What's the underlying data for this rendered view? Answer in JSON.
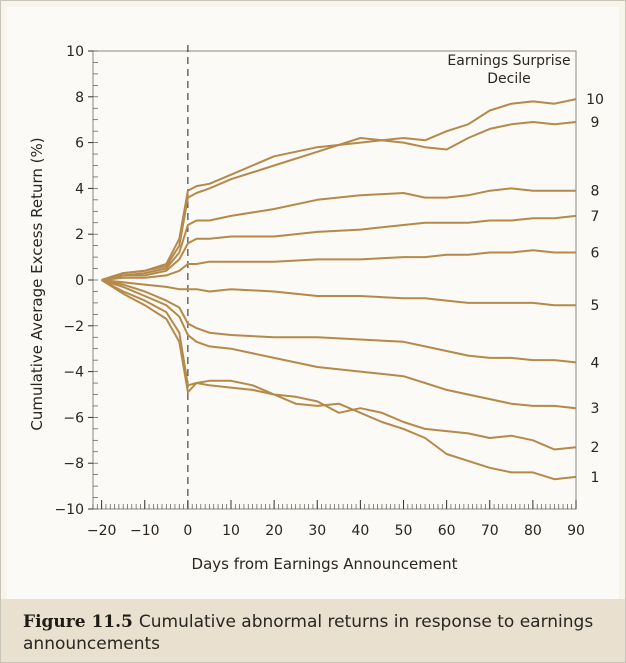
{
  "chart_data": {
    "type": "line",
    "xlabel": "Days from Earnings Announcement",
    "ylabel": "Cumulative Average Excess Return (%)",
    "xlim": [
      -22,
      90
    ],
    "ylim": [
      -10,
      10
    ],
    "x_ticks": [
      -20,
      -10,
      0,
      10,
      20,
      30,
      40,
      50,
      60,
      70,
      80,
      90
    ],
    "x_tick_labels": [
      "−20",
      "−10",
      "0",
      "10",
      "20",
      "30",
      "40",
      "50",
      "60",
      "70",
      "80",
      "90"
    ],
    "y_ticks": [
      10,
      8,
      6,
      4,
      2,
      0,
      -2,
      -4,
      -6,
      -8,
      -10
    ],
    "y_tick_labels": [
      "10",
      "8",
      "6",
      "4",
      "2",
      "0",
      "−2",
      "−4",
      "−6",
      "−8",
      "−10"
    ],
    "legend_title": [
      "Earnings Surprise",
      "Decile"
    ],
    "announcement_line_x": 0,
    "line_color": "#b5894a",
    "series": [
      {
        "name": "10",
        "x": [
          -20,
          -15,
          -10,
          -5,
          -2,
          0,
          2,
          5,
          10,
          20,
          30,
          40,
          50,
          55,
          60,
          65,
          70,
          75,
          80,
          85,
          90
        ],
        "y": [
          0,
          0.3,
          0.4,
          0.7,
          1.8,
          3.9,
          4.1,
          4.2,
          4.6,
          5.4,
          5.8,
          6.0,
          6.2,
          6.1,
          6.5,
          6.8,
          7.4,
          7.7,
          7.8,
          7.7,
          7.9
        ]
      },
      {
        "name": "9",
        "x": [
          -20,
          -15,
          -10,
          -5,
          -2,
          0,
          2,
          5,
          10,
          20,
          30,
          40,
          50,
          55,
          60,
          65,
          70,
          75,
          80,
          85,
          90
        ],
        "y": [
          0,
          0.3,
          0.4,
          0.6,
          1.5,
          3.6,
          3.8,
          4.0,
          4.4,
          5.0,
          5.6,
          6.2,
          6.0,
          5.8,
          5.7,
          6.2,
          6.6,
          6.8,
          6.9,
          6.8,
          6.9
        ]
      },
      {
        "name": "8",
        "x": [
          -20,
          -15,
          -10,
          -5,
          -2,
          0,
          2,
          5,
          10,
          20,
          30,
          40,
          50,
          55,
          60,
          65,
          70,
          75,
          80,
          85,
          90
        ],
        "y": [
          0,
          0.2,
          0.3,
          0.5,
          1.2,
          2.4,
          2.6,
          2.6,
          2.8,
          3.1,
          3.5,
          3.7,
          3.8,
          3.6,
          3.6,
          3.7,
          3.9,
          4.0,
          3.9,
          3.9,
          3.9
        ]
      },
      {
        "name": "7",
        "x": [
          -20,
          -15,
          -10,
          -5,
          -2,
          0,
          2,
          5,
          10,
          20,
          30,
          40,
          50,
          55,
          60,
          65,
          70,
          75,
          80,
          85,
          90
        ],
        "y": [
          0,
          0.2,
          0.2,
          0.4,
          0.9,
          1.6,
          1.8,
          1.8,
          1.9,
          1.9,
          2.1,
          2.2,
          2.4,
          2.5,
          2.5,
          2.5,
          2.6,
          2.6,
          2.7,
          2.7,
          2.8
        ]
      },
      {
        "name": "6",
        "x": [
          -20,
          -15,
          -10,
          -5,
          -2,
          0,
          2,
          5,
          10,
          20,
          30,
          40,
          50,
          55,
          60,
          65,
          70,
          75,
          80,
          85,
          90
        ],
        "y": [
          0,
          0.1,
          0.1,
          0.2,
          0.4,
          0.7,
          0.7,
          0.8,
          0.8,
          0.8,
          0.9,
          0.9,
          1.0,
          1.0,
          1.1,
          1.1,
          1.2,
          1.2,
          1.3,
          1.2,
          1.2
        ]
      },
      {
        "name": "5",
        "x": [
          -20,
          -15,
          -10,
          -5,
          -2,
          0,
          2,
          5,
          10,
          20,
          30,
          40,
          50,
          55,
          60,
          65,
          70,
          75,
          80,
          85,
          90
        ],
        "y": [
          0,
          -0.1,
          -0.2,
          -0.3,
          -0.4,
          -0.4,
          -0.4,
          -0.5,
          -0.4,
          -0.5,
          -0.7,
          -0.7,
          -0.8,
          -0.8,
          -0.9,
          -1.0,
          -1.0,
          -1.0,
          -1.0,
          -1.1,
          -1.1
        ]
      },
      {
        "name": "4",
        "x": [
          -20,
          -15,
          -10,
          -5,
          -2,
          0,
          2,
          5,
          10,
          20,
          30,
          40,
          50,
          55,
          60,
          65,
          70,
          75,
          80,
          85,
          90
        ],
        "y": [
          0,
          -0.2,
          -0.5,
          -0.9,
          -1.2,
          -1.9,
          -2.1,
          -2.3,
          -2.4,
          -2.5,
          -2.5,
          -2.6,
          -2.7,
          -2.9,
          -3.1,
          -3.3,
          -3.4,
          -3.4,
          -3.5,
          -3.5,
          -3.6
        ]
      },
      {
        "name": "3",
        "x": [
          -20,
          -15,
          -10,
          -5,
          -2,
          0,
          2,
          5,
          10,
          20,
          30,
          40,
          50,
          55,
          60,
          65,
          70,
          75,
          80,
          85,
          90
        ],
        "y": [
          0,
          -0.3,
          -0.7,
          -1.1,
          -1.6,
          -2.4,
          -2.7,
          -2.9,
          -3.0,
          -3.4,
          -3.8,
          -4.0,
          -4.2,
          -4.5,
          -4.8,
          -5.0,
          -5.2,
          -5.4,
          -5.5,
          -5.5,
          -5.6
        ]
      },
      {
        "name": "2",
        "x": [
          -20,
          -15,
          -10,
          -5,
          -2,
          0,
          2,
          5,
          10,
          15,
          20,
          25,
          30,
          35,
          40,
          45,
          50,
          55,
          60,
          65,
          70,
          75,
          80,
          85,
          90
        ],
        "y": [
          0,
          -0.5,
          -0.9,
          -1.4,
          -2.3,
          -4.6,
          -4.5,
          -4.6,
          -4.7,
          -4.8,
          -5.0,
          -5.1,
          -5.3,
          -5.8,
          -5.6,
          -5.8,
          -6.2,
          -6.5,
          -6.6,
          -6.7,
          -6.9,
          -6.8,
          -7.0,
          -7.4,
          -7.3
        ]
      },
      {
        "name": "1",
        "x": [
          -20,
          -15,
          -10,
          -5,
          -2,
          0,
          2,
          5,
          10,
          15,
          20,
          25,
          30,
          35,
          40,
          45,
          50,
          55,
          60,
          65,
          70,
          75,
          80,
          85,
          90
        ],
        "y": [
          0,
          -0.6,
          -1.1,
          -1.7,
          -2.7,
          -4.9,
          -4.5,
          -4.4,
          -4.4,
          -4.6,
          -5.0,
          -5.4,
          -5.5,
          -5.4,
          -5.8,
          -6.2,
          -6.5,
          -6.9,
          -7.6,
          -7.9,
          -8.2,
          -8.4,
          -8.4,
          -8.7,
          -8.6
        ]
      }
    ]
  },
  "caption": {
    "label": "Figure 11.5",
    "text": "Cumulative abnormal returns in response to earnings announcements"
  }
}
